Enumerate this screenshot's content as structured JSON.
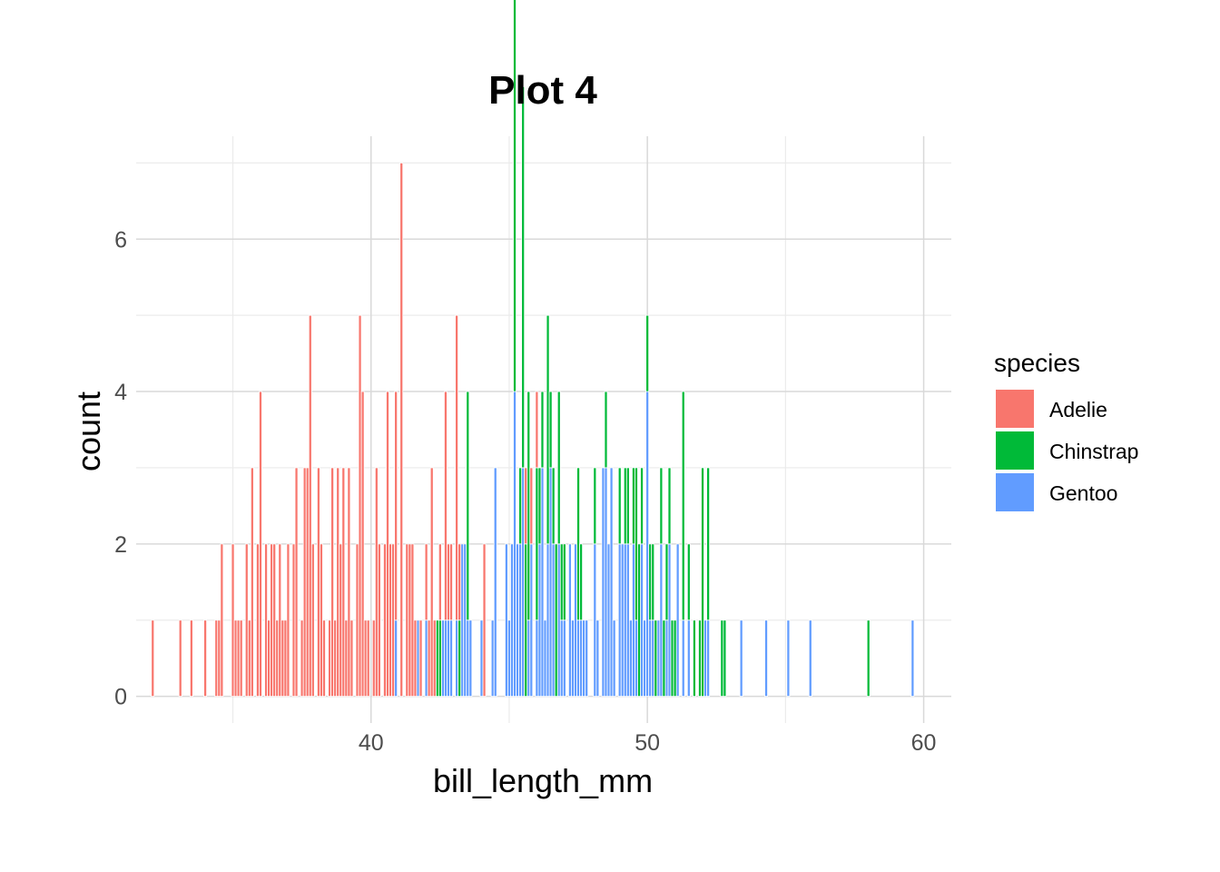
{
  "chart_data": {
    "type": "bar",
    "title": "Plot 4",
    "xlabel": "bill_length_mm",
    "ylabel": "count",
    "xlim": [
      31.5,
      61
    ],
    "ylim": [
      -0.35,
      7.35
    ],
    "x_ticks": [
      40,
      50,
      60
    ],
    "y_ticks": [
      0,
      2,
      4,
      6
    ],
    "x_minor_ticks": [
      35,
      45,
      55
    ],
    "y_minor_ticks": [
      1,
      3,
      5,
      7
    ],
    "grid": true,
    "stacked": true,
    "binwidth": 0.1,
    "legend": {
      "title": "species",
      "position": "right"
    },
    "series": [
      {
        "name": "Adelie",
        "color": "#F8766D",
        "bins": [
          [
            32.1,
            1
          ],
          [
            33.1,
            1
          ],
          [
            33.5,
            1
          ],
          [
            34.0,
            1
          ],
          [
            34.4,
            1
          ],
          [
            34.5,
            1
          ],
          [
            34.6,
            2
          ],
          [
            35.0,
            2
          ],
          [
            35.1,
            1
          ],
          [
            35.2,
            1
          ],
          [
            35.3,
            1
          ],
          [
            35.5,
            2
          ],
          [
            35.6,
            1
          ],
          [
            35.7,
            3
          ],
          [
            35.9,
            2
          ],
          [
            36.0,
            4
          ],
          [
            36.2,
            2
          ],
          [
            36.3,
            1
          ],
          [
            36.4,
            2
          ],
          [
            36.5,
            2
          ],
          [
            36.6,
            1
          ],
          [
            36.7,
            2
          ],
          [
            36.8,
            1
          ],
          [
            36.9,
            1
          ],
          [
            37.0,
            2
          ],
          [
            37.2,
            2
          ],
          [
            37.3,
            3
          ],
          [
            37.5,
            1
          ],
          [
            37.6,
            3
          ],
          [
            37.7,
            3
          ],
          [
            37.8,
            5
          ],
          [
            37.9,
            2
          ],
          [
            38.1,
            3
          ],
          [
            38.2,
            2
          ],
          [
            38.3,
            1
          ],
          [
            38.5,
            1
          ],
          [
            38.6,
            3
          ],
          [
            38.7,
            1
          ],
          [
            38.8,
            3
          ],
          [
            38.9,
            2
          ],
          [
            39.0,
            3
          ],
          [
            39.1,
            1
          ],
          [
            39.2,
            3
          ],
          [
            39.3,
            1
          ],
          [
            39.5,
            2
          ],
          [
            39.6,
            5
          ],
          [
            39.7,
            4
          ],
          [
            39.8,
            1
          ],
          [
            39.9,
            1
          ],
          [
            40.1,
            1
          ],
          [
            40.2,
            3
          ],
          [
            40.3,
            2
          ],
          [
            40.5,
            2
          ],
          [
            40.6,
            4
          ],
          [
            40.7,
            2
          ],
          [
            40.8,
            2
          ],
          [
            40.9,
            3
          ],
          [
            41.1,
            7
          ],
          [
            41.3,
            2
          ],
          [
            41.4,
            2
          ],
          [
            41.5,
            2
          ],
          [
            41.6,
            1
          ],
          [
            41.8,
            1
          ],
          [
            42.0,
            1
          ],
          [
            42.1,
            1
          ],
          [
            42.2,
            3
          ],
          [
            42.3,
            1
          ],
          [
            42.5,
            1
          ],
          [
            42.7,
            3
          ],
          [
            42.8,
            1
          ],
          [
            42.9,
            1
          ],
          [
            43.1,
            4
          ],
          [
            43.2,
            1
          ],
          [
            44.1,
            2
          ],
          [
            45.6,
            1
          ],
          [
            45.8,
            1
          ],
          [
            46.0,
            1
          ]
        ]
      },
      {
        "name": "Chinstrap",
        "color": "#00BA38",
        "bins": [
          [
            42.4,
            1
          ],
          [
            42.5,
            1
          ],
          [
            43.2,
            1
          ],
          [
            43.5,
            3
          ],
          [
            45.2,
            6
          ],
          [
            45.4,
            1
          ],
          [
            45.5,
            5
          ],
          [
            45.6,
            2
          ],
          [
            45.7,
            3
          ],
          [
            46.0,
            2
          ],
          [
            46.1,
            1
          ],
          [
            46.2,
            1
          ],
          [
            46.4,
            3
          ],
          [
            46.5,
            1
          ],
          [
            46.6,
            1
          ],
          [
            46.7,
            2
          ],
          [
            46.8,
            2
          ],
          [
            46.9,
            1
          ],
          [
            47.0,
            1
          ],
          [
            47.5,
            2
          ],
          [
            47.6,
            1
          ],
          [
            48.1,
            1
          ],
          [
            48.5,
            1
          ],
          [
            49.0,
            1
          ],
          [
            49.2,
            1
          ],
          [
            49.3,
            1
          ],
          [
            49.5,
            1
          ],
          [
            49.6,
            2
          ],
          [
            49.7,
            2
          ],
          [
            49.8,
            1
          ],
          [
            50.0,
            1
          ],
          [
            50.1,
            1
          ],
          [
            50.2,
            1
          ],
          [
            50.3,
            1
          ],
          [
            50.5,
            1
          ],
          [
            50.6,
            1
          ],
          [
            50.7,
            1
          ],
          [
            50.8,
            1
          ],
          [
            50.9,
            1
          ],
          [
            51.0,
            1
          ],
          [
            51.3,
            3
          ],
          [
            51.5,
            1
          ],
          [
            51.7,
            1
          ],
          [
            51.9,
            1
          ],
          [
            52.0,
            3
          ],
          [
            52.2,
            2
          ],
          [
            52.7,
            1
          ],
          [
            52.8,
            1
          ],
          [
            58.0,
            1
          ]
        ]
      },
      {
        "name": "Gentoo",
        "color": "#619CFF",
        "bins": [
          [
            40.9,
            1
          ],
          [
            41.7,
            1
          ],
          [
            42.0,
            1
          ],
          [
            42.6,
            1
          ],
          [
            42.7,
            1
          ],
          [
            42.8,
            1
          ],
          [
            42.9,
            1
          ],
          [
            43.1,
            1
          ],
          [
            43.3,
            2
          ],
          [
            43.4,
            2
          ],
          [
            43.5,
            1
          ],
          [
            43.6,
            1
          ],
          [
            44.0,
            1
          ],
          [
            44.4,
            1
          ],
          [
            44.5,
            3
          ],
          [
            44.9,
            2
          ],
          [
            45.0,
            1
          ],
          [
            45.1,
            2
          ],
          [
            45.2,
            4
          ],
          [
            45.3,
            2
          ],
          [
            45.4,
            2
          ],
          [
            45.5,
            3
          ],
          [
            45.7,
            1
          ],
          [
            45.8,
            2
          ],
          [
            46.0,
            1
          ],
          [
            46.1,
            2
          ],
          [
            46.2,
            3
          ],
          [
            46.3,
            1
          ],
          [
            46.4,
            2
          ],
          [
            46.5,
            3
          ],
          [
            46.6,
            2
          ],
          [
            46.8,
            2
          ],
          [
            46.9,
            1
          ],
          [
            47.0,
            1
          ],
          [
            47.2,
            2
          ],
          [
            47.3,
            1
          ],
          [
            47.4,
            2
          ],
          [
            47.5,
            1
          ],
          [
            47.6,
            1
          ],
          [
            47.7,
            1
          ],
          [
            47.8,
            1
          ],
          [
            48.1,
            2
          ],
          [
            48.2,
            1
          ],
          [
            48.4,
            3
          ],
          [
            48.5,
            3
          ],
          [
            48.6,
            2
          ],
          [
            48.7,
            3
          ],
          [
            48.8,
            1
          ],
          [
            49.0,
            2
          ],
          [
            49.1,
            2
          ],
          [
            49.2,
            2
          ],
          [
            49.3,
            2
          ],
          [
            49.4,
            1
          ],
          [
            49.5,
            2
          ],
          [
            49.6,
            1
          ],
          [
            49.8,
            2
          ],
          [
            49.9,
            1
          ],
          [
            50.0,
            4
          ],
          [
            50.1,
            1
          ],
          [
            50.2,
            1
          ],
          [
            50.4,
            1
          ],
          [
            50.5,
            2
          ],
          [
            50.7,
            1
          ],
          [
            50.8,
            2
          ],
          [
            51.1,
            2
          ],
          [
            51.3,
            1
          ],
          [
            51.5,
            1
          ],
          [
            52.1,
            1
          ],
          [
            52.2,
            1
          ],
          [
            53.4,
            1
          ],
          [
            54.3,
            1
          ],
          [
            55.1,
            1
          ],
          [
            55.9,
            1
          ],
          [
            59.6,
            1
          ]
        ]
      }
    ]
  },
  "colors": {
    "grid_major": "#d9d9d9",
    "grid_minor": "#ebebeb",
    "tick_text": "#4d4d4d"
  }
}
